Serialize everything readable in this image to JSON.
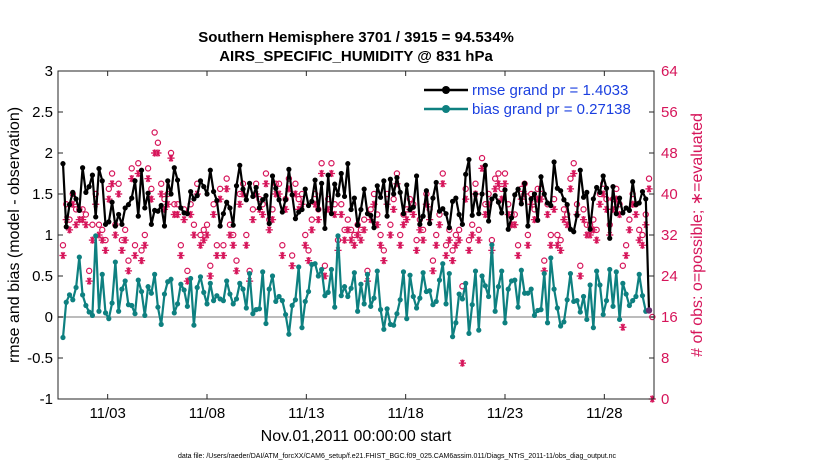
{
  "chart_data": {
    "type": "line",
    "title_line1": "Southern Hemisphere 3701 / 3915 = 94.534%",
    "title_line2": "AIRS_SPECIFIC_HUMIDITY @ 831 hPa",
    "xlabel": "Nov.01,2011 00:00:00 start",
    "ylabel_left": "rmse and bias (model - observation)",
    "ylabel_right": "# of obs: o=possible; ∗=evaluated",
    "xlim": [
      0.5,
      30.5
    ],
    "ylim_left": [
      -1,
      3
    ],
    "ylim_right": [
      0,
      64
    ],
    "x_ticks": [
      {
        "v": 3,
        "label": "11/03"
      },
      {
        "v": 8,
        "label": "11/08"
      },
      {
        "v": 13,
        "label": "11/13"
      },
      {
        "v": 18,
        "label": "11/18"
      },
      {
        "v": 23,
        "label": "11/23"
      },
      {
        "v": 28,
        "label": "11/28"
      }
    ],
    "y_ticks_left": [
      "-1",
      "-0.5",
      "0",
      "0.5",
      "1",
      "1.5",
      "2",
      "2.5",
      "3"
    ],
    "y_ticks_right": [
      "0",
      "8",
      "16",
      "24",
      "32",
      "40",
      "48",
      "56",
      "64"
    ],
    "zero_line": 0,
    "colors": {
      "rmse": "#000000",
      "bias": "#0e8080",
      "obs": "#d6155a",
      "legend_text": "#1a3fe0",
      "zero_line": "#bcbcbc"
    },
    "series": [
      {
        "name": "rmse grand pr = 1.4033",
        "key": "rmse",
        "values": [
          1.87,
          1.1,
          1.37,
          1.52,
          1.44,
          1.3,
          1.82,
          1.52,
          1.59,
          1.73,
          1.22,
          1.81,
          1.66,
          1.13,
          1.16,
          1.4,
          1.11,
          1.25,
          1.13,
          1.33,
          1.37,
          1.45,
          1.66,
          1.23,
          1.79,
          1.33,
          1.51,
          1.13,
          1.3,
          1.29,
          1.36,
          1.11,
          1.66,
          1.5,
          1.82,
          1.67,
          1.33,
          1.27,
          1.26,
          1.53,
          1.44,
          1.48,
          1.66,
          1.59,
          1.5,
          1.79,
          1.53,
          1.42,
          1.11,
          1.26,
          1.4,
          1.33,
          1.12,
          1.6,
          1.85,
          1.56,
          1.43,
          1.63,
          1.47,
          1.58,
          1.33,
          1.43,
          1.48,
          1.14,
          1.72,
          1.57,
          1.43,
          1.28,
          1.43,
          1.8,
          1.49,
          1.2,
          1.28,
          1.31,
          1.56,
          1.36,
          1.41,
          1.67,
          1.31,
          1.63,
          1.08,
          1.73,
          1.26,
          1.62,
          1.49,
          1.75,
          1.47,
          1.87,
          1.31,
          1.45,
          1.12,
          1.31,
          1.56,
          1.26,
          1.24,
          1.09,
          1.6,
          1.46,
          1.66,
          1.23,
          1.68,
          1.5,
          1.7,
          1.52,
          1.26,
          1.61,
          1.31,
          1.34,
          1.72,
          1.13,
          1.23,
          1.54,
          1.14,
          1.45,
          1.64,
          1.29,
          1.32,
          1.26,
          1.09,
          1.41,
          1.45,
          1.25,
          1.13,
          1.74,
          1.92,
          1.24,
          1.5,
          1.26,
          1.5,
          1.85,
          1.17,
          1.44,
          1.48,
          1.4,
          1.27,
          1.55,
          1.07,
          1.21,
          1.49,
          1.56,
          1.38,
          1.63,
          1.11,
          1.44,
          1.5,
          1.18,
          1.71,
          1.5,
          1.39,
          1.36,
          1.89,
          1.57,
          1.54,
          1.43,
          1.37,
          1.07,
          1.04,
          1.24,
          1.79,
          1.46,
          1.52,
          1.07,
          1.44,
          1.58,
          1.52,
          1.72,
          1.57,
          0.96,
          1.59,
          1.26,
          1.45,
          1.27,
          1.33,
          1.3,
          1.65,
          1.37,
          1.39,
          1.53,
          1.44,
          0.08
        ]
      },
      {
        "name": "bias grand pr = 0.27138",
        "key": "bias",
        "values": [
          -0.25,
          0.18,
          0.27,
          0.21,
          0.36,
          0.73,
          0.27,
          0.14,
          0.06,
          0.02,
          0.99,
          0.07,
          0.52,
          0.05,
          -0.02,
          0.17,
          0.67,
          0.07,
          0.34,
          0.44,
          0.15,
          0.14,
          0.04,
          0.45,
          0.31,
          0.02,
          0.37,
          0.29,
          0.52,
          0.12,
          -0.09,
          0.28,
          0.43,
          0.46,
          0.05,
          0.16,
          0.4,
          0.33,
          0.13,
          0.47,
          -0.1,
          0.36,
          0.49,
          0.3,
          0.16,
          0.41,
          0.2,
          0.26,
          0.22,
          0.2,
          0.44,
          0.28,
          0.16,
          0.22,
          0.41,
          0.34,
          0.11,
          0.53,
          0.04,
          0.09,
          0.1,
          0.55,
          -0.08,
          0.34,
          0.5,
          0.19,
          0.25,
          0.2,
          0.03,
          -0.21,
          0.14,
          0.21,
          0.61,
          -0.13,
          0.19,
          0.31,
          0.64,
          0.65,
          0.5,
          0.58,
          0.26,
          0.3,
          0.58,
          0.12,
          0.99,
          0.26,
          0.37,
          0.25,
          0.35,
          0.54,
          0.07,
          0.4,
          0.16,
          0.52,
          0.13,
          0.23,
          0.56,
          0.09,
          -0.15,
          0.1,
          -0.09,
          -0.1,
          0.04,
          0.21,
          0.55,
          -0.02,
          0.51,
          0.25,
          0.11,
          0.23,
          0.54,
          0.31,
          0.32,
          0.15,
          0.19,
          0.45,
          0.65,
          0.16,
          0.53,
          -0.24,
          -0.07,
          0.28,
          0.22,
          0.41,
          -0.2,
          0.15,
          0.56,
          -0.16,
          0.5,
          0.38,
          0.25,
          0.88,
          0.07,
          0.37,
          0.56,
          -0.07,
          0.34,
          0.44,
          0.45,
          0.12,
          0.57,
          0.29,
          0.29,
          0.34,
          0.02,
          0.08,
          0.09,
          0.53,
          -0.07,
          0.72,
          0.34,
          0.11,
          -0.11,
          -0.06,
          0.21,
          0.53,
          0.19,
          0.2,
          0.06,
          0.25,
          -0.03,
          0.39,
          -0.13,
          0.56,
          0.39,
          0.03,
          0.2,
          0.58,
          0.13,
          0.55,
          -0.03,
          0.41,
          0.28,
          0.14,
          0.2,
          0.25,
          0.52,
          0.26,
          0.07
        ]
      },
      {
        "name": "obs possible",
        "key": "possible",
        "marker": "o",
        "axis": "right",
        "values": [
          30,
          38,
          35,
          40,
          37,
          37,
          37,
          36,
          25,
          34,
          40,
          34,
          33,
          31,
          41,
          44,
          34,
          42,
          31,
          33,
          27,
          45,
          30,
          46,
          29,
          32,
          45,
          41,
          52,
          50,
          42,
          39,
          40,
          48,
          38,
          38,
          30,
          37,
          25,
          38,
          34,
          42,
          32,
          33,
          34,
          26,
          38,
          30,
          41,
          30,
          43,
          34,
          32,
          27,
          40,
          42,
          32,
          25,
          37,
          42,
          39,
          38,
          44,
          35,
          37,
          42,
          42,
          30,
          39,
          43,
          28,
          42,
          39,
          40,
          32,
          29,
          35,
          40,
          37,
          46,
          26,
          39,
          46,
          38,
          31,
          38,
          33,
          35,
          33,
          32,
          34,
          33,
          35,
          25,
          37,
          40,
          36,
          32,
          29,
          40,
          34,
          39,
          44,
          32,
          36,
          37,
          39,
          38,
          31,
          35,
          33,
          40,
          37,
          27,
          32,
          36,
          44,
          30,
          33,
          29,
          32,
          33,
          22,
          41,
          31,
          34,
          42,
          33,
          47,
          38,
          40,
          31,
          43,
          44,
          41,
          44,
          38,
          36,
          36,
          30,
          41,
          42,
          32,
          40,
          37,
          41,
          41,
          27,
          38,
          32,
          39,
          32,
          31,
          37,
          36,
          43,
          46,
          38,
          26,
          37,
          34,
          34,
          35,
          33,
          40,
          42,
          39,
          34,
          39,
          41,
          38,
          26,
          30,
          35,
          40,
          38,
          33,
          32,
          36,
          43,
          16
        ]
      },
      {
        "name": "obs evaluated",
        "key": "evaluated",
        "marker": "*",
        "axis": "right",
        "values": [
          28,
          35,
          33,
          38,
          34,
          35,
          35,
          34,
          23,
          31,
          38,
          32,
          31,
          29,
          39,
          42,
          32,
          40,
          29,
          31,
          25,
          43,
          28,
          44,
          27,
          30,
          43,
          39,
          48,
          48,
          40,
          37,
          38,
          47,
          36,
          36,
          28,
          35,
          23,
          36,
          32,
          40,
          30,
          31,
          32,
          24,
          36,
          28,
          39,
          28,
          41,
          32,
          30,
          25,
          38,
          40,
          30,
          23,
          35,
          40,
          37,
          36,
          42,
          33,
          35,
          40,
          40,
          28,
          37,
          41,
          26,
          40,
          37,
          38,
          30,
          27,
          33,
          38,
          35,
          44,
          24,
          37,
          44,
          36,
          29,
          36,
          31,
          33,
          31,
          30,
          32,
          31,
          33,
          23,
          35,
          38,
          34,
          30,
          27,
          38,
          32,
          37,
          42,
          30,
          34,
          35,
          37,
          36,
          29,
          33,
          31,
          38,
          35,
          25,
          30,
          34,
          42,
          28,
          31,
          27,
          30,
          31,
          7,
          39,
          29,
          32,
          40,
          31,
          45,
          36,
          38,
          29,
          41,
          42,
          39,
          42,
          36,
          34,
          34,
          28,
          39,
          40,
          30,
          38,
          35,
          39,
          39,
          25,
          36,
          30,
          37,
          30,
          29,
          35,
          34,
          41,
          44,
          36,
          24,
          35,
          32,
          32,
          33,
          31,
          38,
          40,
          37,
          32,
          37,
          39,
          36,
          14,
          28,
          33,
          38,
          36,
          31,
          30,
          34,
          41,
          0
        ]
      }
    ]
  },
  "legend": {
    "rmse_label": "rmse grand pr = 1.4033",
    "bias_label": "bias grand pr = 0.27138"
  },
  "footer": {
    "datafile": "data file: /Users/raeder/DAI/ATM_forcXX/CAM6_setup/f.e21.FHIST_BGC.f09_025.CAM6assim.011/Diags_NTrS_2011-11/obs_diag_output.nc"
  }
}
